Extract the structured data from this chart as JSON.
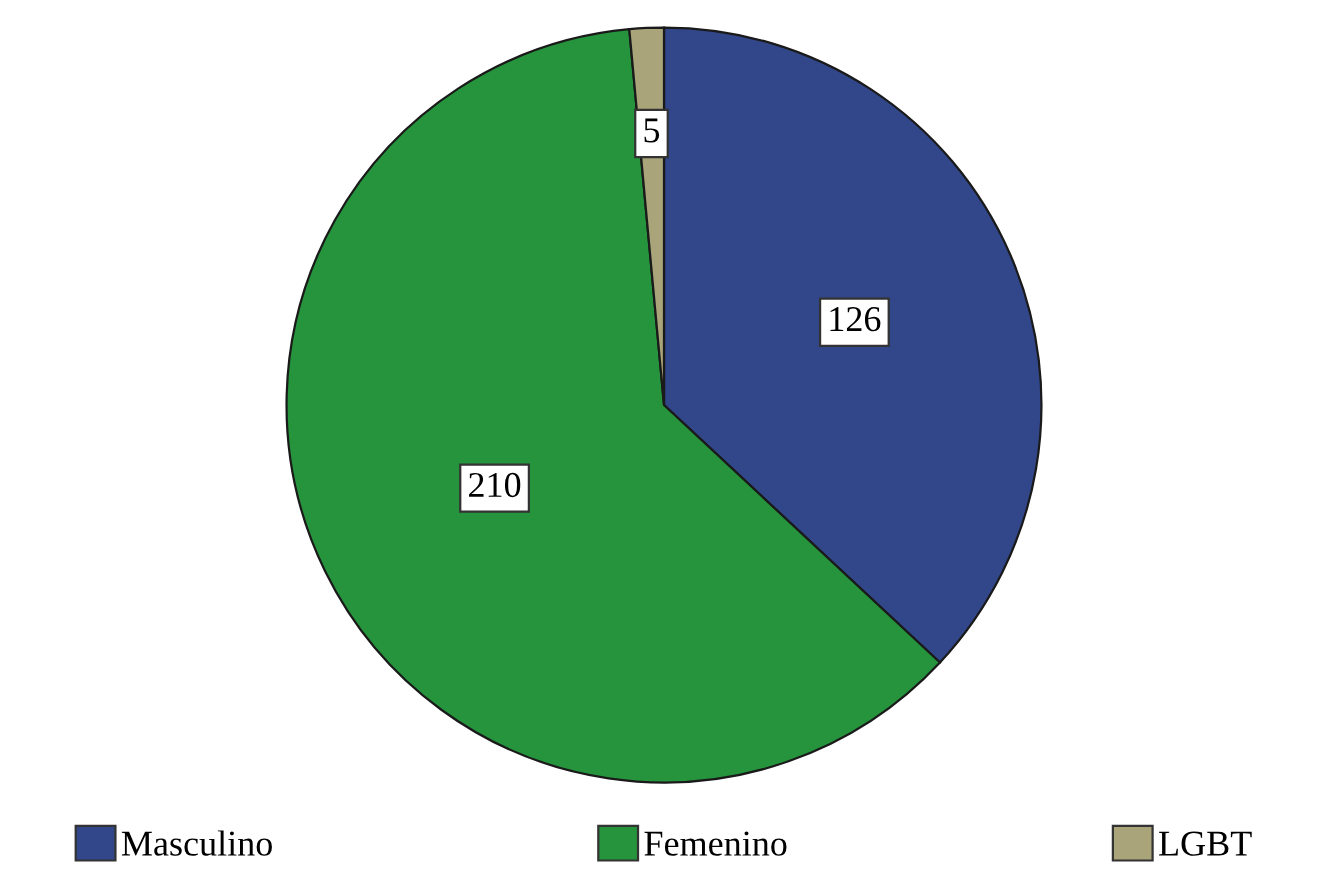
{
  "chart_data": {
    "type": "pie",
    "categories": [
      "Masculino",
      "Femenino",
      "LGBT"
    ],
    "values": [
      126,
      210,
      5
    ],
    "colors": [
      "#32478a",
      "#25943c",
      "#a9a47a"
    ],
    "data_labels": true,
    "legend": "bottom"
  }
}
